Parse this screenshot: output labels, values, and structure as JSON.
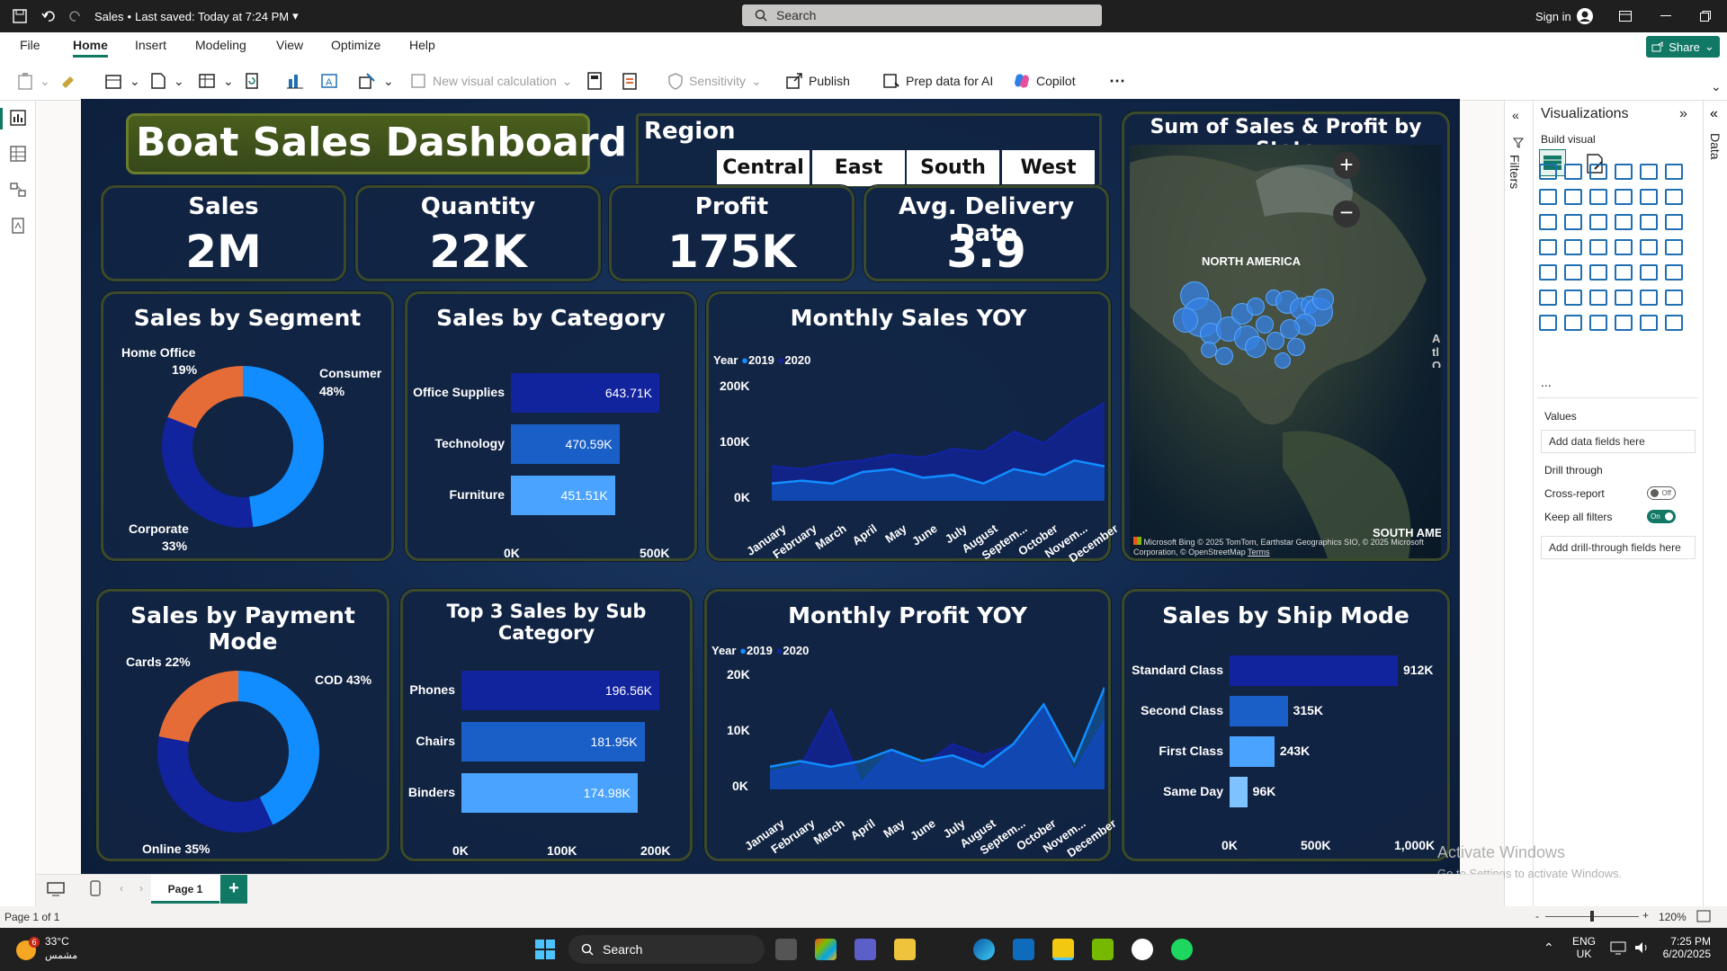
{
  "app": {
    "file_title": "Sales",
    "save_status": "Last saved: Today at 7:24 PM",
    "search_placeholder": "Search",
    "sign_in": "Sign in",
    "share": "Share"
  },
  "menu": [
    "File",
    "Home",
    "Insert",
    "Modeling",
    "View",
    "Optimize",
    "Help"
  ],
  "menu_active": "Home",
  "ribbon": {
    "new_visual_calc": "New visual calculation",
    "sensitivity": "Sensitivity",
    "publish": "Publish",
    "prep_data": "Prep data for AI",
    "copilot": "Copilot",
    "more": "⋯"
  },
  "dashboard": {
    "title": "Boat Sales Dashboard",
    "region_label": "Region",
    "regions": [
      "Central",
      "East",
      "South",
      "West"
    ],
    "kpis": [
      {
        "title": "Sales",
        "value": "2M"
      },
      {
        "title": "Quantity",
        "value": "22K"
      },
      {
        "title": "Profit",
        "value": "175K"
      },
      {
        "title": "Avg. Delivery Date",
        "value": "3.9"
      }
    ],
    "segment": {
      "title": "Sales by Segment",
      "slices": [
        {
          "label": "Consumer",
          "pct": "48%",
          "value": 48,
          "color": "#118dff"
        },
        {
          "label": "Corporate",
          "pct": "33%",
          "value": 33,
          "color": "#12239e"
        },
        {
          "label": "Home Office",
          "pct": "19%",
          "value": 19,
          "color": "#e66c37"
        }
      ]
    },
    "category": {
      "title": "Sales by Category",
      "items": [
        {
          "label": "Office Supplies",
          "value": 643.71,
          "text": "643.71K"
        },
        {
          "label": "Technology",
          "value": 470.59,
          "text": "470.59K"
        },
        {
          "label": "Furniture",
          "value": 451.51,
          "text": "451.51K"
        }
      ],
      "axis": [
        "0K",
        "500K"
      ]
    },
    "monthly_sales": {
      "title": "Monthly Sales YOY",
      "legend_title": "Year",
      "series_names": [
        "2019",
        "2020"
      ],
      "yticks": [
        "200K",
        "100K",
        "0K"
      ],
      "months": [
        "January",
        "February",
        "March",
        "April",
        "May",
        "June",
        "July",
        "August",
        "Septem...",
        "October",
        "Novem...",
        "December"
      ]
    },
    "map": {
      "title": "Sum of Sales & Profit by State",
      "label_na": "NORTH AMERICA",
      "label_sa": "SOUTH AME",
      "label_atl": "Atl O",
      "copyright": "© 2025 TomTom, Earthstar Geographics SIO, © 2025 Microsoft Corporation, © OpenStreetMap",
      "terms": "Terms",
      "bing": "Microsoft Bing"
    },
    "payment": {
      "title": "Sales by Payment Mode",
      "slices": [
        {
          "label": "COD 43%",
          "value": 43,
          "color": "#118dff"
        },
        {
          "label": "Online 35%",
          "value": 35,
          "color": "#12239e"
        },
        {
          "label": "Cards 22%",
          "value": 22,
          "color": "#e66c37"
        }
      ]
    },
    "subcategory": {
      "title": "Top 3 Sales by Sub Category",
      "items": [
        {
          "label": "Phones",
          "value": 196.56,
          "text": "196.56K"
        },
        {
          "label": "Chairs",
          "value": 181.95,
          "text": "181.95K"
        },
        {
          "label": "Binders",
          "value": 174.98,
          "text": "174.98K"
        }
      ],
      "axis": [
        "0K",
        "100K",
        "200K"
      ]
    },
    "monthly_profit": {
      "title": "Monthly Profit YOY",
      "legend_title": "Year",
      "series_names": [
        "2019",
        "2020"
      ],
      "yticks": [
        "20K",
        "10K",
        "0K"
      ],
      "months": [
        "January",
        "February",
        "March",
        "April",
        "May",
        "June",
        "July",
        "August",
        "Septem...",
        "October",
        "Novem...",
        "December"
      ]
    },
    "shipmode": {
      "title": "Sales by Ship Mode",
      "items": [
        {
          "label": "Standard Class",
          "value": 912,
          "text": "912K"
        },
        {
          "label": "Second Class",
          "value": 315,
          "text": "315K"
        },
        {
          "label": "First Class",
          "value": 243,
          "text": "243K"
        },
        {
          "label": "Same Day",
          "value": 96,
          "text": "96K"
        }
      ],
      "axis": [
        "0K",
        "500K",
        "1,000K"
      ]
    }
  },
  "chart_data": [
    {
      "type": "bar",
      "title": "Sales by Category",
      "categories": [
        "Office Supplies",
        "Technology",
        "Furniture"
      ],
      "values": [
        643.71,
        470.59,
        451.51
      ],
      "xlim": [
        0,
        800
      ]
    },
    {
      "type": "pie",
      "title": "Sales by Segment",
      "categories": [
        "Consumer",
        "Corporate",
        "Home Office"
      ],
      "values": [
        48,
        33,
        19
      ]
    },
    {
      "type": "area",
      "title": "Monthly Sales YOY",
      "x": [
        "January",
        "February",
        "March",
        "April",
        "May",
        "June",
        "July",
        "August",
        "Septem...",
        "October",
        "Novem...",
        "December"
      ],
      "series": [
        {
          "name": "2019",
          "values": [
            30,
            35,
            30,
            50,
            55,
            40,
            45,
            30,
            55,
            45,
            70,
            60
          ]
        },
        {
          "name": "2020",
          "values": [
            60,
            55,
            65,
            70,
            80,
            75,
            90,
            85,
            120,
            100,
            140,
            170
          ]
        }
      ],
      "ylim": [
        0,
        200
      ]
    },
    {
      "type": "pie",
      "title": "Sales by Payment Mode",
      "categories": [
        "COD",
        "Online",
        "Cards"
      ],
      "values": [
        43,
        35,
        22
      ]
    },
    {
      "type": "bar",
      "title": "Top 3 Sales by Sub Category",
      "categories": [
        "Phones",
        "Chairs",
        "Binders"
      ],
      "values": [
        196.56,
        181.95,
        174.98
      ],
      "xlim": [
        0,
        200
      ]
    },
    {
      "type": "area",
      "title": "Monthly Profit YOY",
      "x": [
        "January",
        "February",
        "March",
        "April",
        "May",
        "June",
        "July",
        "August",
        "Septem...",
        "October",
        "Novem...",
        "December"
      ],
      "series": [
        {
          "name": "2019",
          "values": [
            4,
            5,
            4,
            5,
            7,
            5,
            6,
            4,
            8,
            15,
            5,
            18
          ]
        },
        {
          "name": "2020",
          "values": [
            3,
            4,
            14,
            1,
            7,
            4,
            8,
            6,
            8,
            15,
            3,
            12
          ]
        }
      ],
      "ylim": [
        0,
        20
      ]
    },
    {
      "type": "bar",
      "title": "Sales by Ship Mode",
      "categories": [
        "Standard Class",
        "Second Class",
        "First Class",
        "Same Day"
      ],
      "values": [
        912,
        315,
        243,
        96
      ],
      "xlim": [
        0,
        1100
      ]
    }
  ],
  "vizpane": {
    "title": "Visualizations",
    "filters_label": "Filters",
    "data_label": "Data",
    "build_visual": "Build visual",
    "values_label": "Values",
    "values_placeholder": "Add data fields here",
    "drill_through": "Drill through",
    "cross_report": "Cross-report",
    "cross_report_state": "Off",
    "keep_filters": "Keep all filters",
    "keep_filters_state": "On",
    "drill_placeholder": "Add drill-through fields here",
    "more": "..."
  },
  "pages": {
    "tab": "Page 1",
    "add": "+"
  },
  "status": {
    "page": "Page 1 of 1",
    "zoom": "120%"
  },
  "watermark": {
    "activate": "Activate Windows",
    "activate_sub": "Go to Settings to activate Windows."
  },
  "taskbar": {
    "temp": "33°C",
    "weather": "مشمس",
    "search": "Search",
    "lang1": "ENG",
    "lang2": "UK",
    "time": "7:25 PM",
    "date": "6/20/2025",
    "badge": "6"
  }
}
